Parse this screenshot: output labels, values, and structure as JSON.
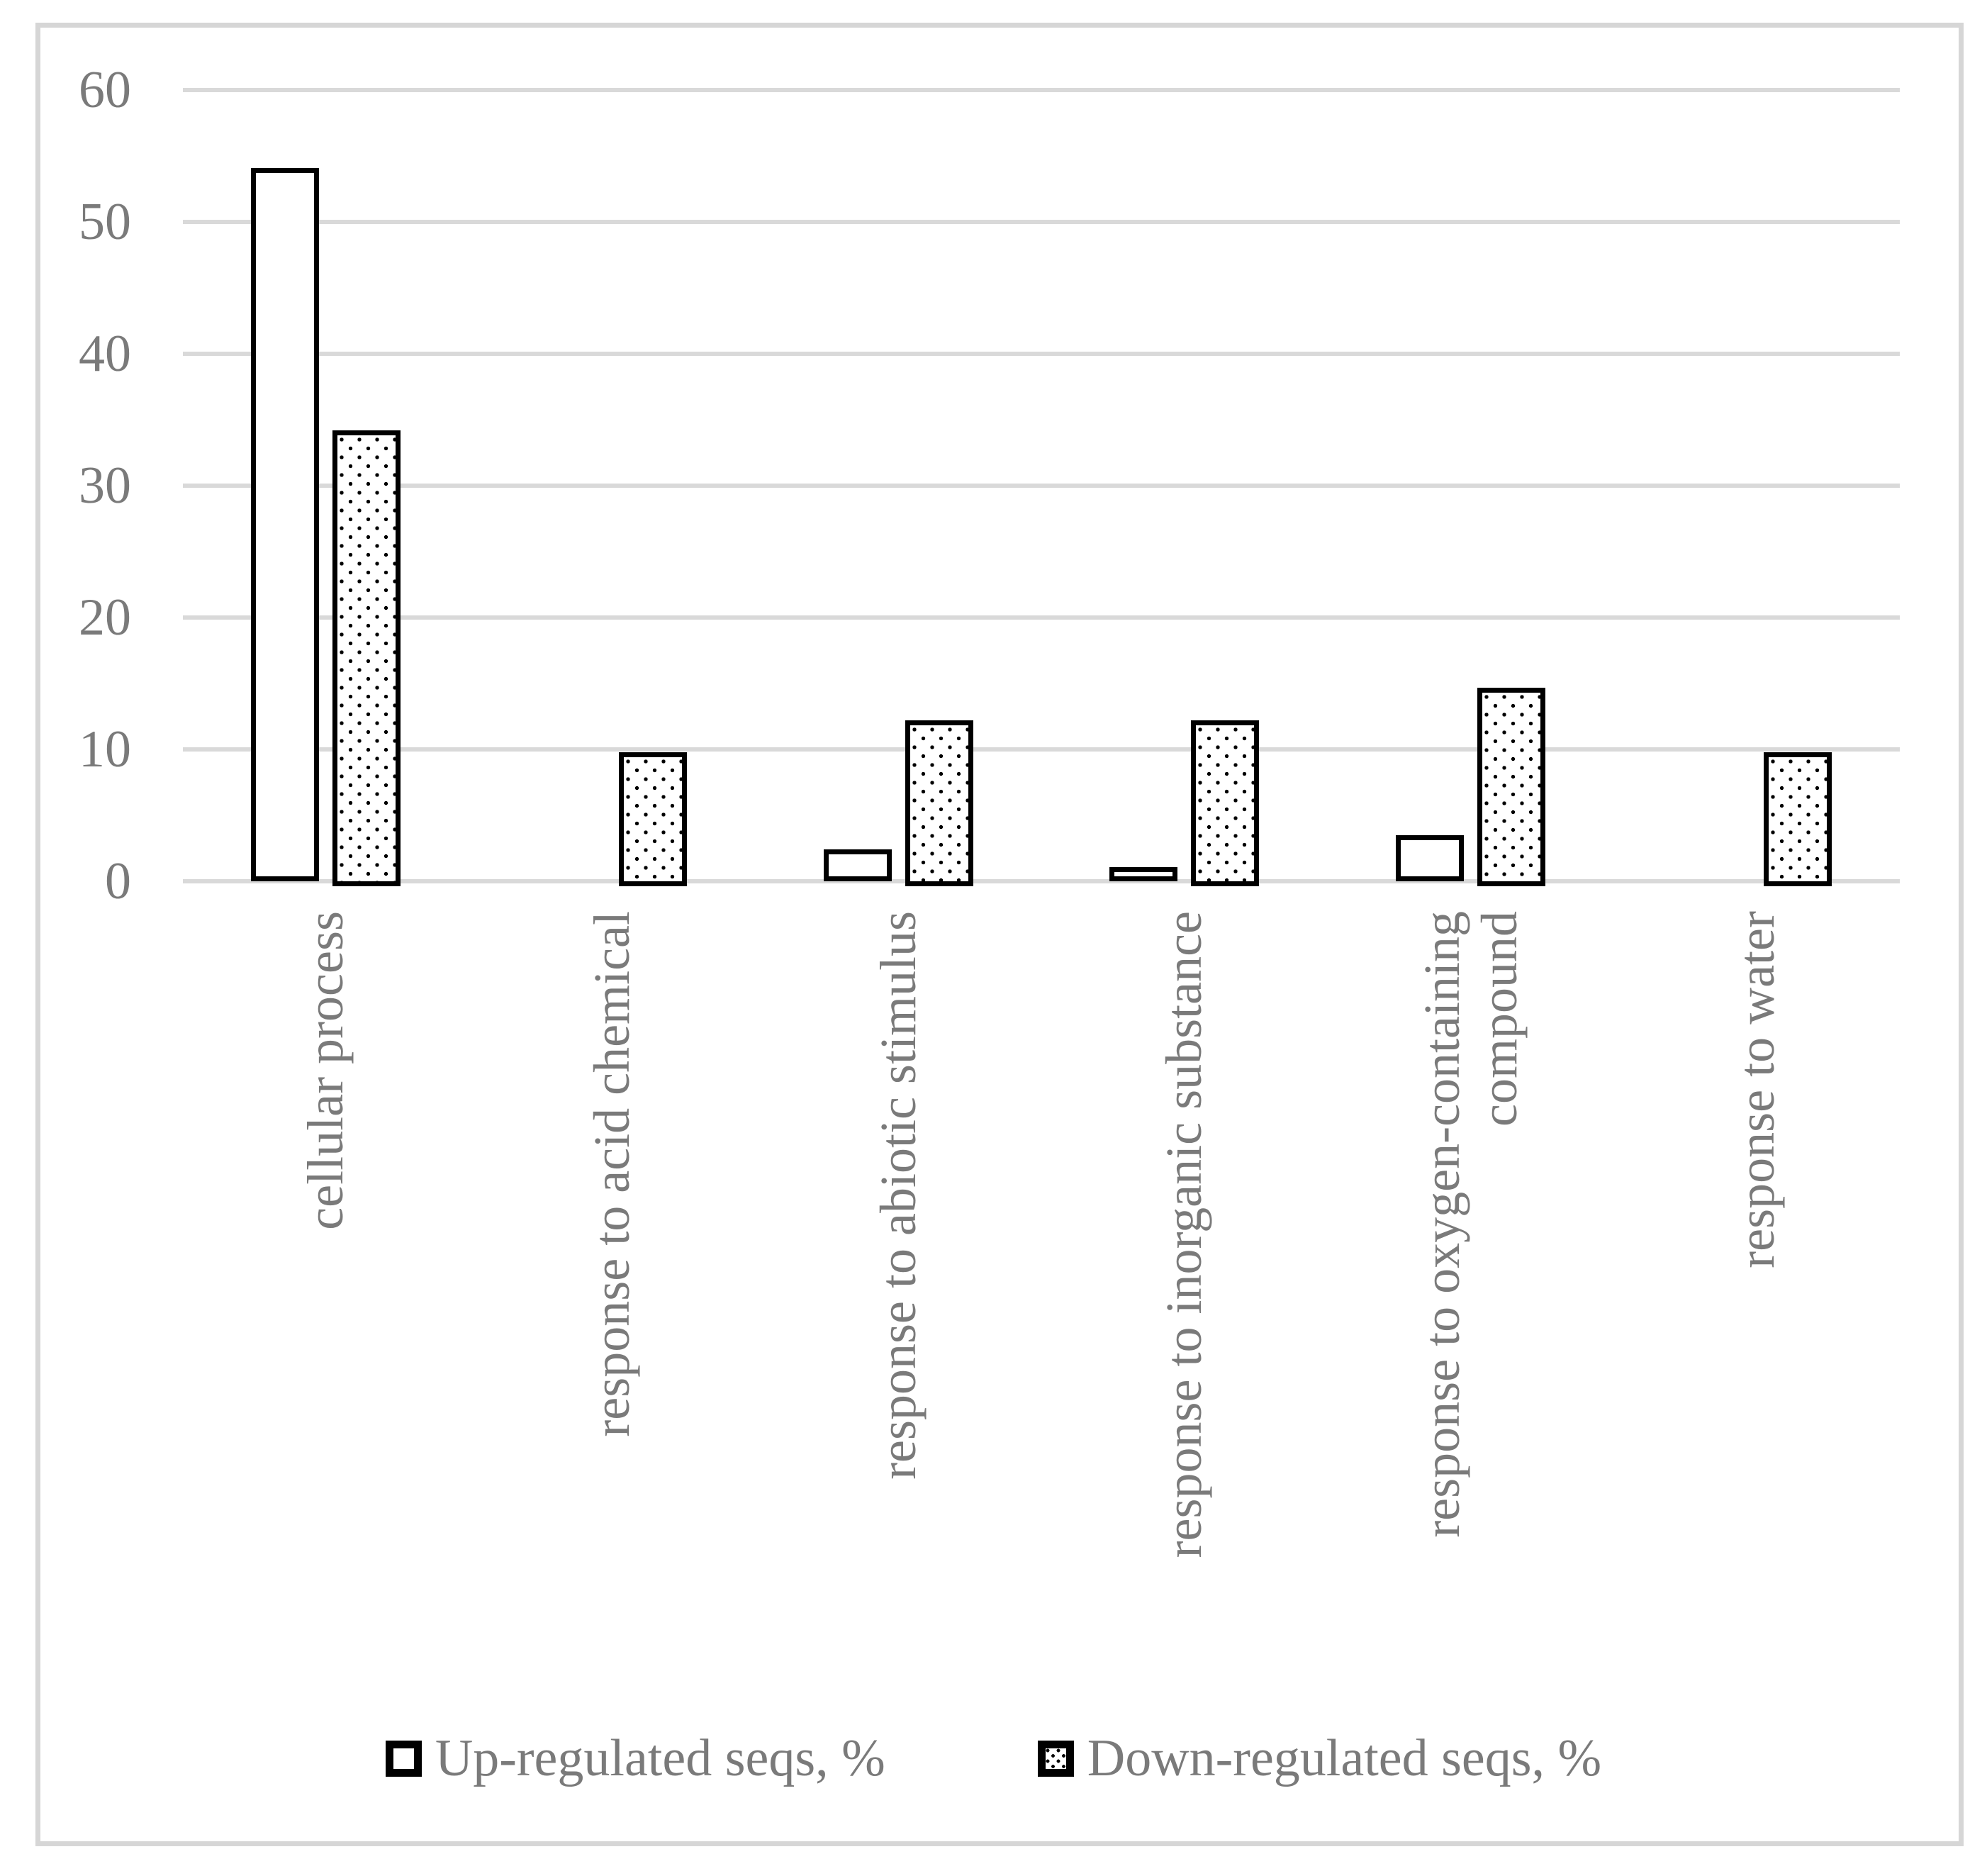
{
  "chart_data": {
    "type": "bar",
    "title": "",
    "xlabel": "",
    "ylabel": "",
    "categories": [
      "cellular process",
      "response to acid chemical",
      "response to abiotic stimulus",
      "response to inorganic substance",
      "response to oxygen-containing compound",
      "response to water"
    ],
    "series": [
      {
        "name": "Up-regulated seqs, %",
        "fill": "white",
        "values": [
          54.1,
          0,
          2.4,
          1.1,
          3.5,
          0
        ]
      },
      {
        "name": "Down-regulated seqs, %",
        "fill": "dotted",
        "values": [
          34.2,
          9.8,
          12.2,
          12.2,
          14.7,
          9.8
        ]
      }
    ],
    "ylim": [
      0,
      60
    ],
    "yticks": [
      0,
      10,
      20,
      30,
      40,
      50,
      60
    ],
    "grid": true,
    "gridline_orientation": "horizontal",
    "legend_position": "bottom",
    "category_label_rotation_deg": -90,
    "colors": {
      "bar_fill": "#ffffff",
      "bar_border": "#000000",
      "dot_pattern": "#000000",
      "gridline": "#d9d9d9",
      "chart_border": "#d6d6d6",
      "text": "#7a7a7a",
      "background": "#ffffff"
    }
  }
}
